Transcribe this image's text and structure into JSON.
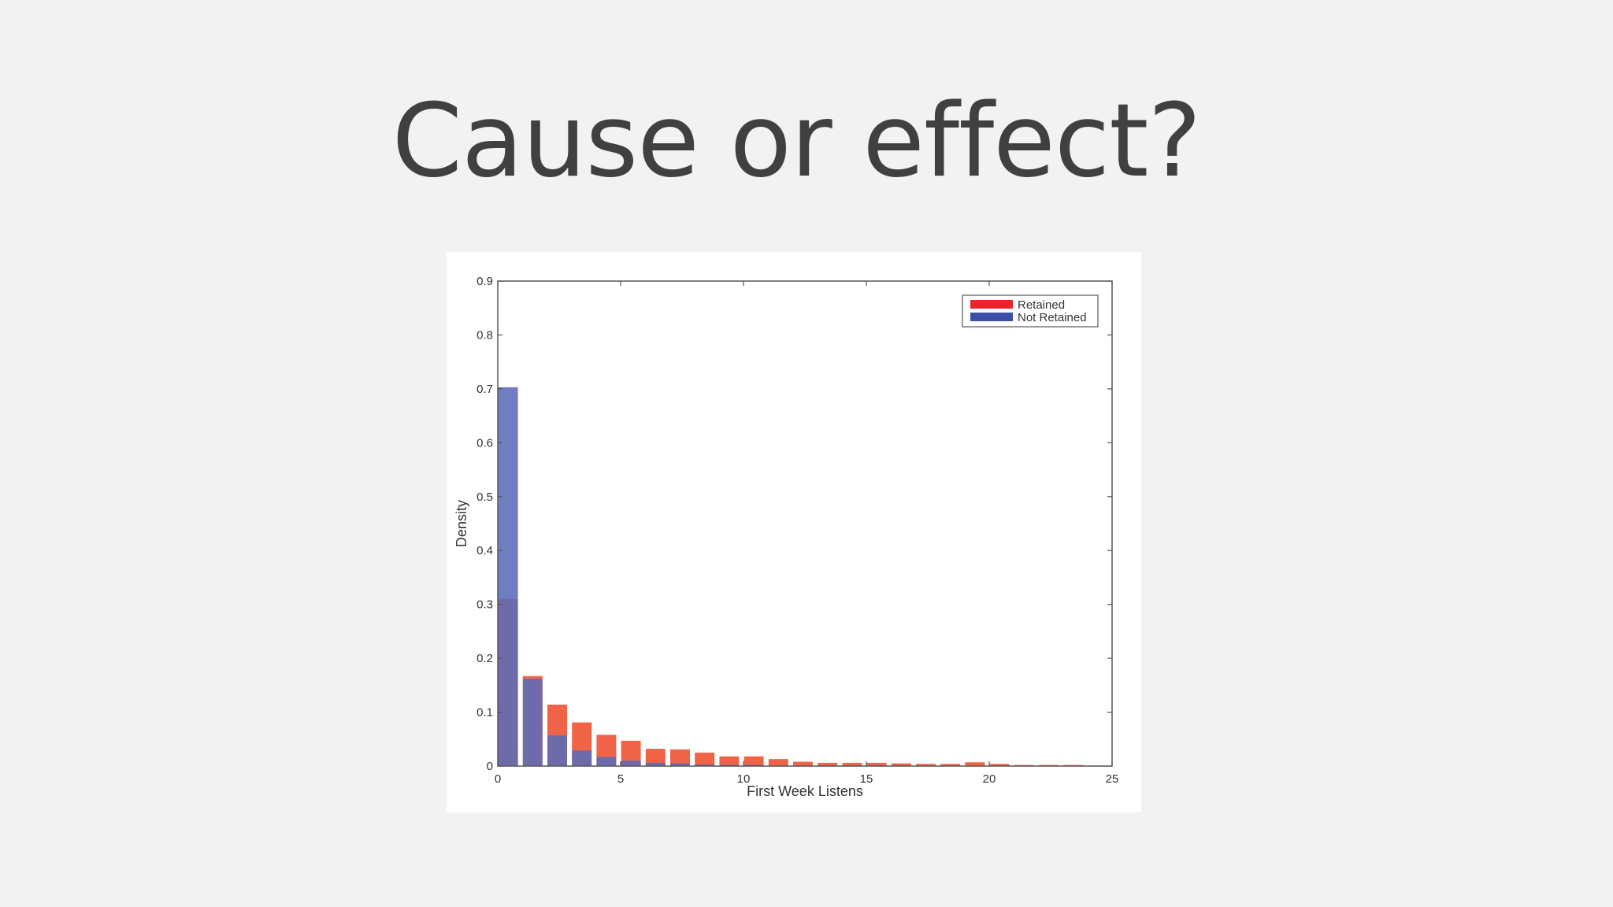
{
  "slide": {
    "title": "Cause or effect?"
  },
  "chart_data": {
    "type": "bar",
    "title": "",
    "xlabel": "First Week Listens",
    "ylabel": "Density",
    "xlim": [
      0,
      25
    ],
    "ylim": [
      0,
      0.9
    ],
    "xticks": [
      0,
      5,
      10,
      15,
      20,
      25
    ],
    "xtick_labels": [
      "0",
      "5",
      "10",
      "15",
      "20",
      "25"
    ],
    "yticks": [
      0,
      0.1,
      0.2,
      0.3,
      0.4,
      0.5,
      0.6,
      0.7,
      0.8,
      0.9
    ],
    "ytick_labels": [
      "0",
      "0.1",
      "0.2",
      "0.3",
      "0.4",
      "0.5",
      "0.6",
      "0.7",
      "0.8",
      "0.9"
    ],
    "grid": false,
    "legend": "top-right",
    "bins": [
      0,
      1,
      2,
      3,
      4,
      5,
      6,
      7,
      8,
      9,
      10,
      11,
      12,
      13,
      14,
      15,
      16,
      17,
      18,
      19,
      20,
      21,
      22,
      23,
      24
    ],
    "series": [
      {
        "name": "Retained",
        "color": "#ef5b3c",
        "values": [
          0.31,
          0.167,
          0.114,
          0.081,
          0.058,
          0.047,
          0.032,
          0.031,
          0.025,
          0.018,
          0.018,
          0.013,
          0.008,
          0.006,
          0.006,
          0.006,
          0.005,
          0.004,
          0.004,
          0.007,
          0.004,
          0.002,
          0.002,
          0.002,
          0.001
        ]
      },
      {
        "name": "Not Retained",
        "color": "#5a6cb8",
        "values": [
          0.703,
          0.162,
          0.057,
          0.029,
          0.017,
          0.01,
          0.006,
          0.005,
          0.003,
          0.002,
          0.002,
          0.001,
          0.001,
          0.001,
          0.001,
          0.001,
          0.0,
          0.0,
          0.0,
          0.0,
          0.0,
          0.0,
          0.0,
          0.0,
          0.0
        ]
      }
    ]
  }
}
